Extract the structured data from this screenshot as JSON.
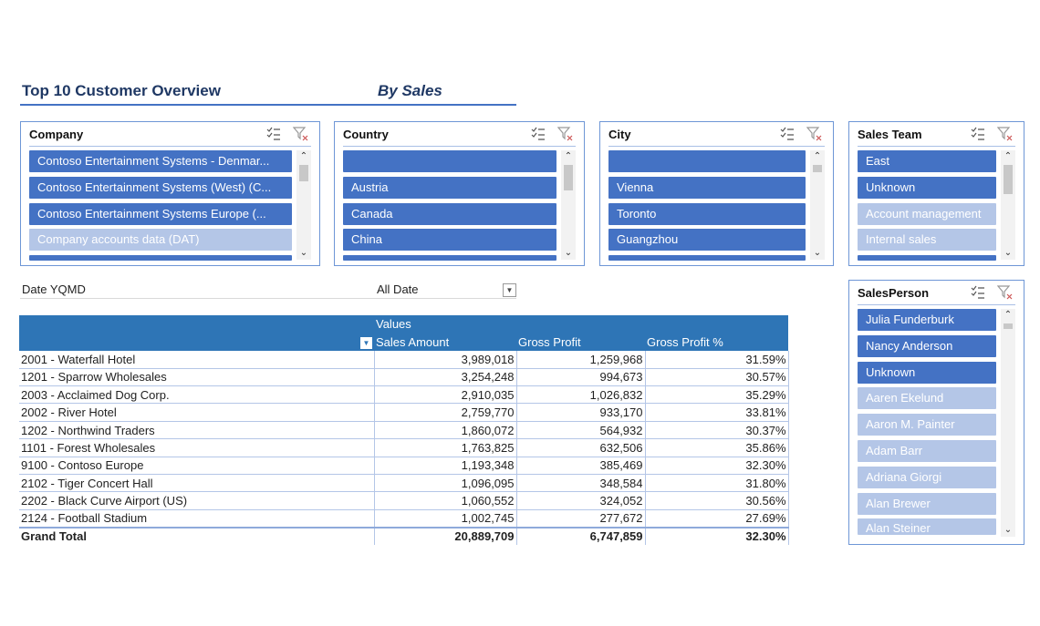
{
  "header": {
    "title": "Top 10 Customer Overview",
    "subtitle": "By Sales"
  },
  "slicers": {
    "company": {
      "title": "Company",
      "items": [
        {
          "label": "Contoso Entertainment Systems - Denmar...",
          "selected": true
        },
        {
          "label": "Contoso Entertainment Systems (West) (C...",
          "selected": true
        },
        {
          "label": "Contoso Entertainment Systems Europe (...",
          "selected": true
        },
        {
          "label": "Company accounts data (DAT)",
          "selected": false
        }
      ]
    },
    "country": {
      "title": "Country",
      "items": [
        {
          "label": "",
          "selected": true
        },
        {
          "label": "Austria",
          "selected": true
        },
        {
          "label": "Canada",
          "selected": true
        },
        {
          "label": "China",
          "selected": true
        }
      ]
    },
    "city": {
      "title": "City",
      "items": [
        {
          "label": "",
          "selected": true
        },
        {
          "label": "Vienna",
          "selected": true
        },
        {
          "label": "Toronto",
          "selected": true
        },
        {
          "label": "Guangzhou",
          "selected": true
        }
      ]
    },
    "sales_team": {
      "title": "Sales Team",
      "items": [
        {
          "label": "East",
          "selected": true
        },
        {
          "label": "Unknown",
          "selected": true
        },
        {
          "label": "Account management",
          "selected": false
        },
        {
          "label": "Internal sales",
          "selected": false
        }
      ]
    },
    "sales_person": {
      "title": "SalesPerson",
      "items": [
        {
          "label": "Julia Funderburk",
          "selected": true
        },
        {
          "label": "Nancy Anderson",
          "selected": true
        },
        {
          "label": "Unknown",
          "selected": true
        },
        {
          "label": "Aaren Ekelund",
          "selected": false
        },
        {
          "label": "Aaron M. Painter",
          "selected": false
        },
        {
          "label": "Adam Barr",
          "selected": false
        },
        {
          "label": "Adriana Giorgi",
          "selected": false
        },
        {
          "label": "Alan Brewer",
          "selected": false
        },
        {
          "label": "Alan Steiner",
          "selected": false
        }
      ]
    }
  },
  "filter": {
    "label": "Date YQMD",
    "value": "All Date"
  },
  "pivot": {
    "values_header": "Values",
    "columns": [
      "Sales Amount",
      "Gross Profit",
      "Gross Profit %"
    ],
    "rows": [
      [
        "2001 - Waterfall Hotel",
        "3,989,018",
        "1,259,968",
        "31.59%"
      ],
      [
        "1201 - Sparrow Wholesales",
        "3,254,248",
        "994,673",
        "30.57%"
      ],
      [
        "2003 - Acclaimed Dog Corp.",
        "2,910,035",
        "1,026,832",
        "35.29%"
      ],
      [
        "2002 - River Hotel",
        "2,759,770",
        "933,170",
        "33.81%"
      ],
      [
        "1202 - Northwind Traders",
        "1,860,072",
        "564,932",
        "30.37%"
      ],
      [
        "1101 - Forest Wholesales",
        "1,763,825",
        "632,506",
        "35.86%"
      ],
      [
        "9100 - Contoso Europe",
        "1,193,348",
        "385,469",
        "32.30%"
      ],
      [
        "2102 - Tiger Concert Hall",
        "1,096,095",
        "348,584",
        "31.80%"
      ],
      [
        "2202 - Black Curve Airport (US)",
        "1,060,552",
        "324,052",
        "30.56%"
      ],
      [
        "2124 - Football Stadium",
        "1,002,745",
        "277,672",
        "27.69%"
      ]
    ],
    "total": [
      "Grand Total",
      "20,889,709",
      "6,747,859",
      "32.30%"
    ]
  },
  "icons": {
    "multi_select": "multi-select-icon",
    "clear_filter": "clear-filter-icon",
    "sort": "sort-descending-icon"
  },
  "colors": {
    "selected": "#4472c4",
    "unselected": "#b4c6e7",
    "header": "#2e75b6",
    "title": "#1f3864"
  }
}
